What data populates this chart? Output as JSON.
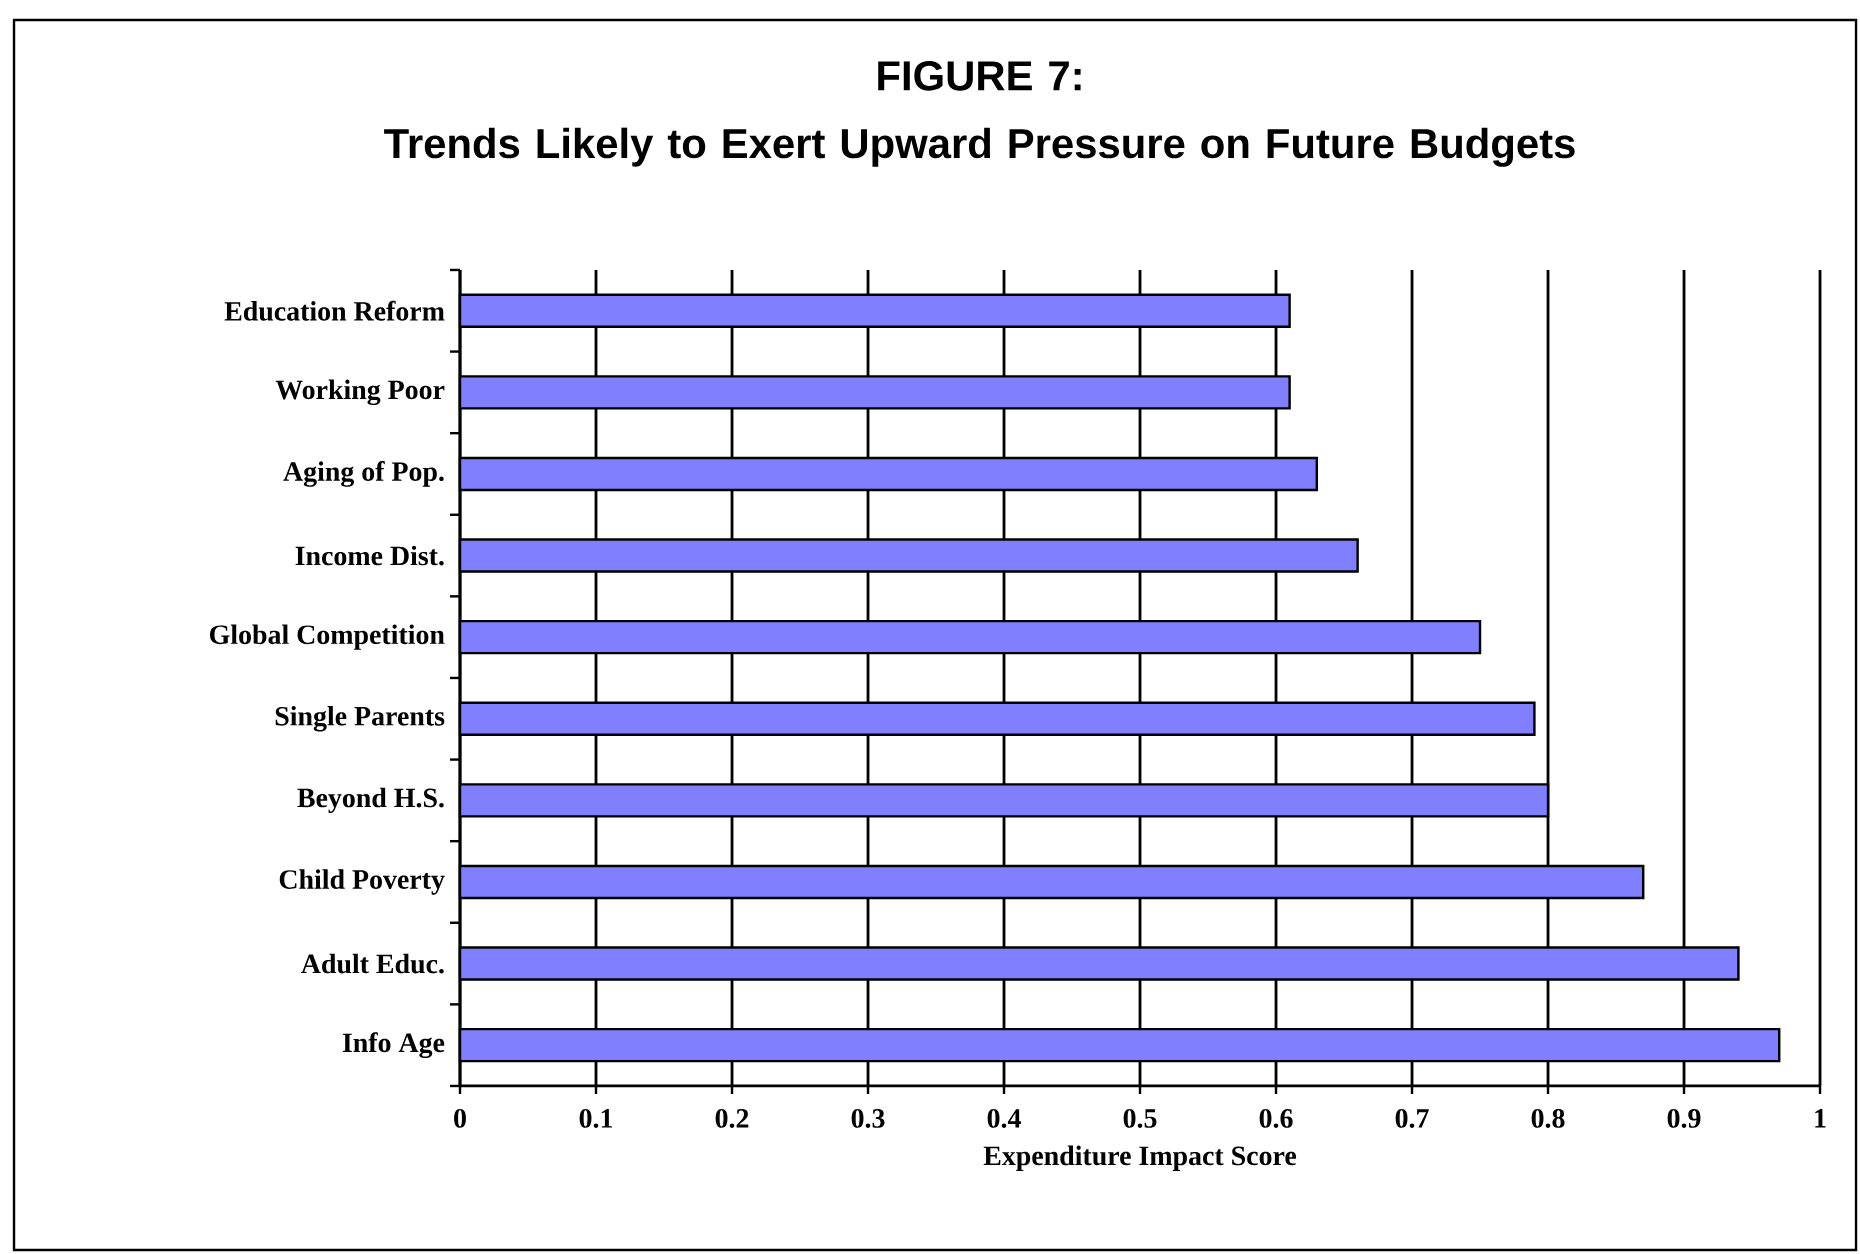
{
  "chart_data": {
    "type": "bar",
    "orientation": "horizontal",
    "title": "FIGURE 7:",
    "subtitle": "Trends Likely to Exert Upward Pressure on Future Budgets",
    "xlabel": "Expenditure Impact Score",
    "categories": [
      "Education Reform",
      "Working Poor",
      "Aging of Pop.",
      "Income Dist.",
      "Global Competition",
      "Single Parents",
      "Beyond H.S.",
      "Child Poverty",
      "Adult Educ.",
      "Info Age"
    ],
    "values": [
      0.61,
      0.61,
      0.63,
      0.66,
      0.75,
      0.79,
      0.8,
      0.87,
      0.94,
      0.97
    ],
    "color": "#8080ff",
    "xlim": [
      0,
      1
    ],
    "xticks": [
      0,
      0.1,
      0.2,
      0.3,
      0.4,
      0.5,
      0.6,
      0.7,
      0.8,
      0.9,
      1
    ],
    "grid": "x"
  }
}
